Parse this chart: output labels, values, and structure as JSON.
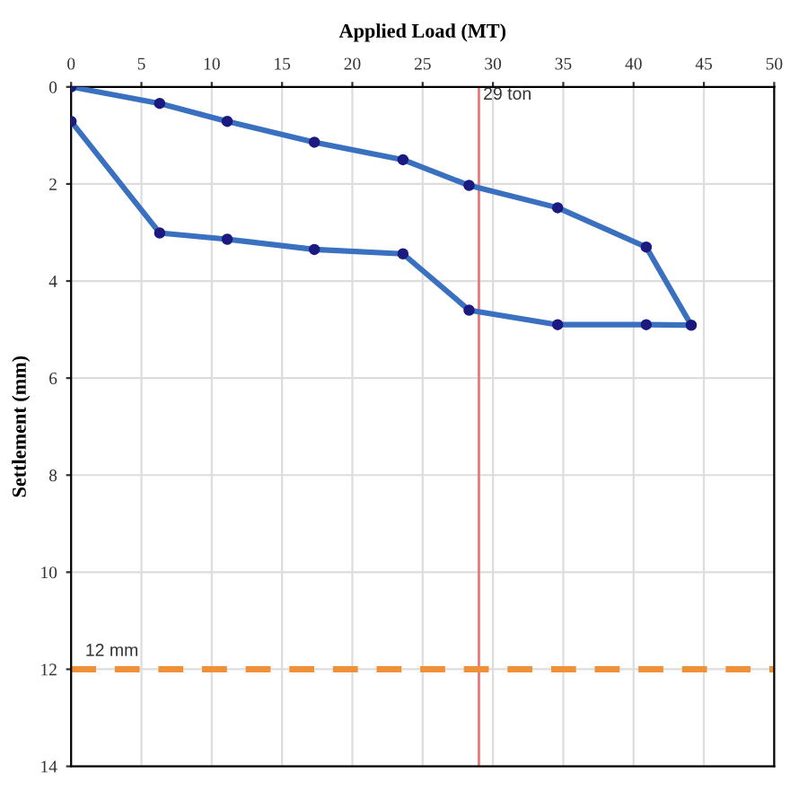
{
  "chart_data": {
    "type": "line",
    "xlabel": "Applied Load (MT)",
    "ylabel": "Settlement (mm)",
    "series": [
      {
        "color": "#3a70c0",
        "x": [
          0,
          6.3,
          11.1,
          17.3,
          23.6,
          28.3,
          34.6,
          40.9,
          44.1,
          40.9,
          34.6,
          28.3,
          23.6,
          17.3,
          11.1,
          6.3,
          0
        ],
        "values": [
          0,
          0.34,
          0.71,
          1.14,
          1.5,
          2.03,
          2.49,
          3.3,
          4.91,
          4.9,
          4.9,
          4.6,
          3.44,
          3.35,
          3.14,
          3.01,
          0.71
        ]
      }
    ],
    "marker": "circle",
    "line_style": "solid",
    "xlim": [
      0,
      50
    ],
    "xticks": [
      0,
      5,
      10,
      15,
      20,
      25,
      30,
      35,
      40,
      45,
      50
    ],
    "ylim": [
      14,
      0
    ],
    "yticks": [
      0,
      2,
      4,
      6,
      8,
      10,
      12,
      14
    ],
    "grid": true,
    "ref_lines": [
      {
        "axis": "x",
        "value": 29,
        "label": "29 ton",
        "color": "#e87878",
        "line_style": "solid"
      },
      {
        "axis": "y",
        "value": 12,
        "label": "12 mm",
        "color": "#f0913a",
        "line_style": "dashed"
      }
    ]
  }
}
